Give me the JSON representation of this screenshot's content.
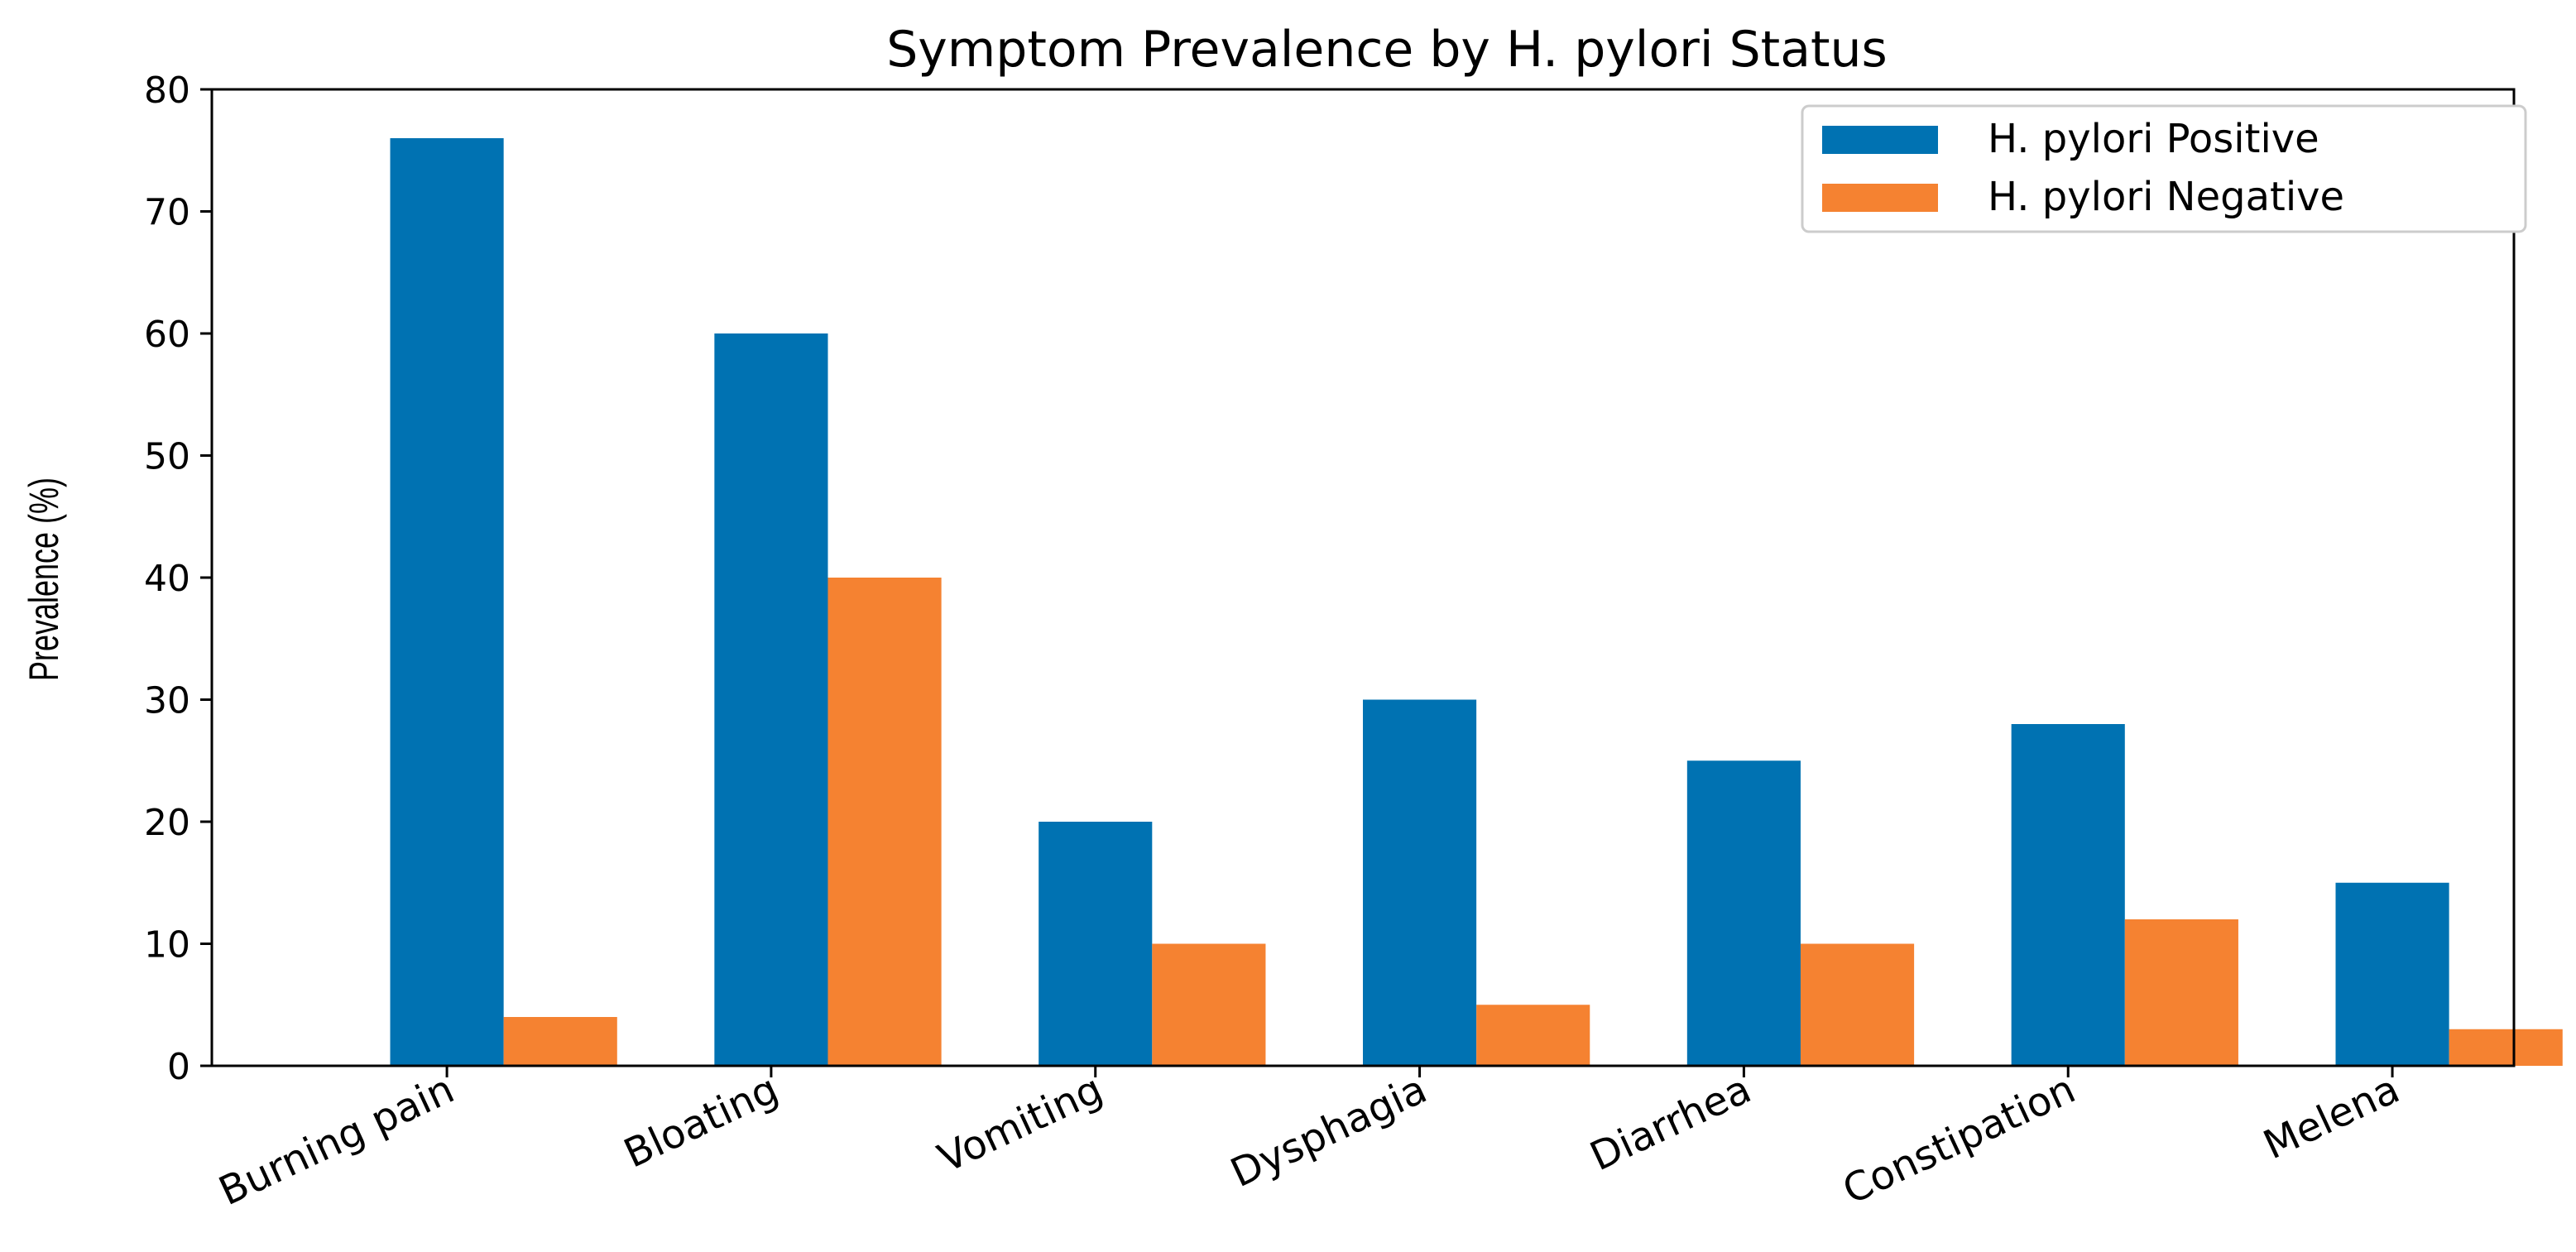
{
  "chart_data": {
    "type": "bar",
    "title": "Symptom Prevalence by H. pylori Status",
    "xlabel": "",
    "ylabel": "Prevalence (%)",
    "categories": [
      "Burning pain",
      "Bloating",
      "Vomiting",
      "Dysphagia",
      "Diarrhea",
      "Constipation",
      "Melena"
    ],
    "series": [
      {
        "name": "H. pylori Positive",
        "color": "#0072b2",
        "values": [
          76,
          60,
          20,
          30,
          25,
          28,
          15
        ]
      },
      {
        "name": "H. pylori Negative",
        "color": "#f58231",
        "values": [
          4,
          40,
          10,
          5,
          10,
          12,
          3
        ]
      }
    ],
    "ylim": [
      0,
      80
    ],
    "yticks": [
      0,
      10,
      20,
      30,
      40,
      50,
      60,
      70,
      80
    ],
    "grid": false,
    "legend_position": "top-right"
  }
}
